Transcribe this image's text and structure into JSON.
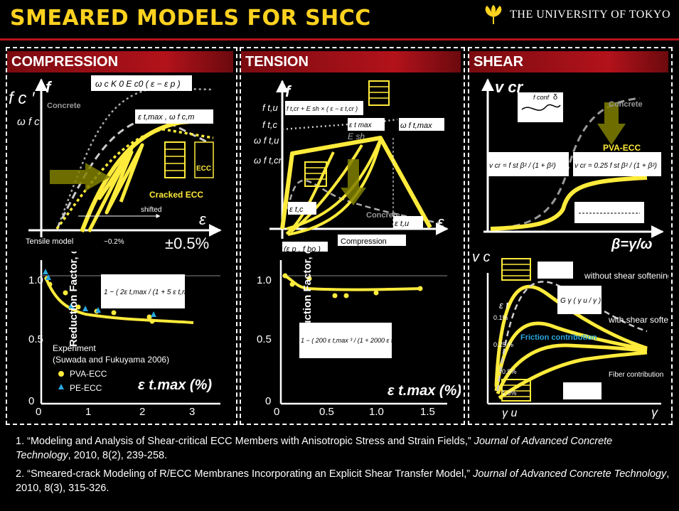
{
  "header": {
    "title": "SMEARED MODELS FOR SHCC",
    "university": "THE UNIVERSITY OF TOKYO"
  },
  "panels": {
    "compression": {
      "title": "COMPRESSION",
      "fc_prime": "f c ′",
      "f": "f",
      "omega_fc": "ω f c",
      "formula_top": "ω c K 0 E c0 ( ε − ε p )",
      "concrete": "Concrete",
      "eps_tmax": "ε t,max , ω f c,m",
      "ecc": "ECC",
      "cracked_ecc": "Cracked ECC",
      "shifted": "shifted",
      "epsilon": "ε",
      "tensile_model": "Tensile model",
      "approx": "~0.2%",
      "pm": "±0.5%"
    },
    "tension": {
      "title": "TENSION",
      "f": "f",
      "ftu": "f t,u",
      "ftc": "f t,c",
      "omega_ftu": "ω f t,u",
      "omega_ftcr": "ω f t,cr",
      "formula": "f t,cr + E sh × ( ε − ε t,cr )",
      "eps_tmax": "ε t max",
      "omega_ftmax": "ω f t,max",
      "esh": "E sh",
      "eps_tc": "ε t,c",
      "concrete": "Concrete",
      "eps_tu": "ε t,u",
      "epsilon": "ε",
      "epsp": "(ε p , f bo )",
      "compression": "Compression"
    },
    "shear": {
      "title": "SHEAR",
      "vcr": "v cr",
      "omega": "ω",
      "fconf": "f conf",
      "delta": "δ",
      "concrete": "Concrete",
      "pva": "PVA-ECC",
      "formula1": "v cr = f st β² / (1 + β²)",
      "formula2": "v cr = 0.25 f st β² / (1 + β²)",
      "beta": "β=γ/ω"
    },
    "comp_reduction": {
      "ylabel": "Reduction Factor, ω c",
      "formula": "1 − ( 2ε t,max / (1 + 5 ε t,max) )",
      "experiment": "Experiment",
      "ref": "(Suwada and Fukuyama 2006)",
      "pva": "PVA-ECC",
      "pe": "PE-ECC",
      "xlabel": "ε t.max (%)",
      "yticks": [
        "1.0",
        "0.5",
        "0"
      ],
      "xticks": [
        "0",
        "1",
        "2",
        "3"
      ]
    },
    "tens_reduction": {
      "ylabel": "Reduction Factor, ω t",
      "formula": "1 − ( 200 ε t,max ³ / (1 + 2000 ε t,max ³) )",
      "xlabel": "ε t.max (%)",
      "yticks": [
        "1.0",
        "0.5",
        "0"
      ],
      "xticks": [
        "0",
        "0.5",
        "1.0",
        "1.5"
      ]
    },
    "shear_transfer": {
      "vc": "v c",
      "without": "without shear softening",
      "with": "with shear softening",
      "eps_t": "ε t",
      "p01": "0.1%",
      "p025": "0.25 %",
      "p05": "0.5%",
      "p10": "1.0%",
      "friction": "Friction contribution",
      "fiber": "Fiber contribution",
      "gamma_u": "γ u",
      "gamma": "γ",
      "formula": "G γ ( γ u / γ )"
    }
  },
  "references": [
    {
      "num": "1.",
      "title": "“Modeling and Analysis of Shear-critical ECC Members with Anisotropic Stress and Strain Fields,”",
      "journal": "Journal of Advanced Concrete Technology",
      "rest": ", 2010, 8(2), 239-258."
    },
    {
      "num": "2.",
      "title": "“Smeared-crack Modeling of R/ECC Membranes Incorporating an Explicit Shear Transfer Model,”",
      "journal": "Journal of Advanced Concrete Technology",
      "rest": ", 2010, 8(3), 315-326."
    }
  ]
}
